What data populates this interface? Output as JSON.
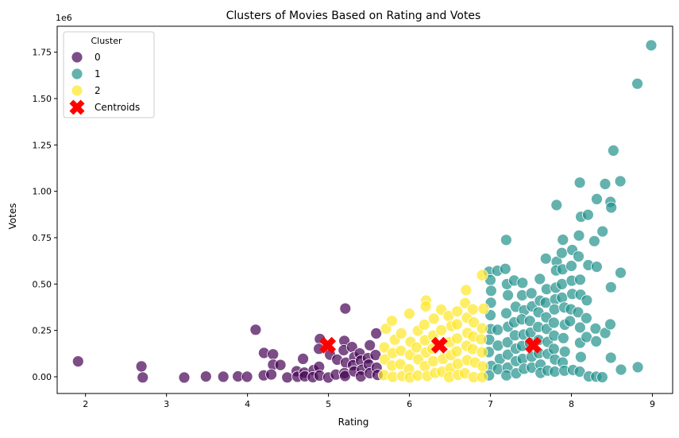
{
  "chart_data": {
    "type": "scatter",
    "title": "Clusters of Movies Based on Rating and Votes",
    "xlabel": "Rating",
    "ylabel": "Votes",
    "y_offset_label": "1e6",
    "xlim": [
      1.65,
      9.25
    ],
    "ylim": [
      -0.09,
      1.89
    ],
    "x_ticks": [
      2,
      3,
      4,
      5,
      6,
      7,
      8,
      9
    ],
    "y_ticks": [
      0.0,
      0.25,
      0.5,
      0.75,
      1.0,
      1.25,
      1.5,
      1.75
    ],
    "y_tick_labels": [
      "0.00",
      "0.25",
      "0.50",
      "0.75",
      "1.00",
      "1.25",
      "1.50",
      "1.75"
    ],
    "legend": {
      "title": "Cluster",
      "position": "upper-left",
      "entries": [
        "0",
        "1",
        "2",
        "Centroids"
      ]
    },
    "colors": {
      "cluster_0": "#440154",
      "cluster_1": "#21918c",
      "cluster_2": "#fde725",
      "centroids": "#ff0000"
    },
    "series": [
      {
        "name": "0",
        "points": [
          [
            1.9,
            0.08
          ],
          [
            2.7,
            0.06
          ],
          [
            2.7,
            0.0
          ],
          [
            3.2,
            0.0
          ],
          [
            3.5,
            0.0
          ],
          [
            3.7,
            0.0
          ],
          [
            3.9,
            0.0
          ],
          [
            4.0,
            0.0
          ],
          [
            4.1,
            0.25
          ],
          [
            4.2,
            0.13
          ],
          [
            4.2,
            0.01
          ],
          [
            4.3,
            0.12
          ],
          [
            4.3,
            0.07
          ],
          [
            4.3,
            0.01
          ],
          [
            4.4,
            0.06
          ],
          [
            4.5,
            0.0
          ],
          [
            4.6,
            0.03
          ],
          [
            4.6,
            0.0
          ],
          [
            4.7,
            0.1
          ],
          [
            4.7,
            0.02
          ],
          [
            4.7,
            0.0
          ],
          [
            4.8,
            0.04
          ],
          [
            4.8,
            0.0
          ],
          [
            4.9,
            0.2
          ],
          [
            4.9,
            0.15
          ],
          [
            4.9,
            0.05
          ],
          [
            4.9,
            0.01
          ],
          [
            5.0,
            0.12
          ],
          [
            5.0,
            0.0
          ],
          [
            5.1,
            0.09
          ],
          [
            5.1,
            0.01
          ],
          [
            5.2,
            0.37
          ],
          [
            5.2,
            0.19
          ],
          [
            5.2,
            0.14
          ],
          [
            5.2,
            0.08
          ],
          [
            5.2,
            0.02
          ],
          [
            5.2,
            0.0
          ],
          [
            5.3,
            0.16
          ],
          [
            5.3,
            0.11
          ],
          [
            5.3,
            0.06
          ],
          [
            5.3,
            0.03
          ],
          [
            5.4,
            0.13
          ],
          [
            5.4,
            0.09
          ],
          [
            5.4,
            0.04
          ],
          [
            5.4,
            0.0
          ],
          [
            5.5,
            0.17
          ],
          [
            5.5,
            0.1
          ],
          [
            5.5,
            0.07
          ],
          [
            5.5,
            0.02
          ],
          [
            5.6,
            0.23
          ],
          [
            5.6,
            0.12
          ],
          [
            5.6,
            0.05
          ],
          [
            5.6,
            0.01
          ]
        ]
      },
      {
        "name": "1",
        "points": [
          [
            7.0,
            0.57
          ],
          [
            7.0,
            0.52
          ],
          [
            7.0,
            0.46
          ],
          [
            7.0,
            0.4
          ],
          [
            7.0,
            0.33
          ],
          [
            7.0,
            0.26
          ],
          [
            7.0,
            0.2
          ],
          [
            7.0,
            0.13
          ],
          [
            7.0,
            0.06
          ],
          [
            7.0,
            0.01
          ],
          [
            7.1,
            0.57
          ],
          [
            7.1,
            0.25
          ],
          [
            7.1,
            0.17
          ],
          [
            7.1,
            0.1
          ],
          [
            7.1,
            0.04
          ],
          [
            7.2,
            0.74
          ],
          [
            7.2,
            0.58
          ],
          [
            7.2,
            0.5
          ],
          [
            7.2,
            0.44
          ],
          [
            7.2,
            0.34
          ],
          [
            7.2,
            0.27
          ],
          [
            7.2,
            0.19
          ],
          [
            7.2,
            0.12
          ],
          [
            7.2,
            0.05
          ],
          [
            7.2,
            0.01
          ],
          [
            7.3,
            0.52
          ],
          [
            7.3,
            0.38
          ],
          [
            7.3,
            0.29
          ],
          [
            7.3,
            0.22
          ],
          [
            7.3,
            0.15
          ],
          [
            7.3,
            0.08
          ],
          [
            7.3,
            0.02
          ],
          [
            7.4,
            0.51
          ],
          [
            7.4,
            0.44
          ],
          [
            7.4,
            0.36
          ],
          [
            7.4,
            0.31
          ],
          [
            7.4,
            0.23
          ],
          [
            7.4,
            0.17
          ],
          [
            7.4,
            0.1
          ],
          [
            7.4,
            0.04
          ],
          [
            7.5,
            0.45
          ],
          [
            7.5,
            0.38
          ],
          [
            7.5,
            0.3
          ],
          [
            7.5,
            0.24
          ],
          [
            7.5,
            0.18
          ],
          [
            7.5,
            0.11
          ],
          [
            7.5,
            0.05
          ],
          [
            7.6,
            0.53
          ],
          [
            7.6,
            0.41
          ],
          [
            7.6,
            0.35
          ],
          [
            7.6,
            0.27
          ],
          [
            7.6,
            0.2
          ],
          [
            7.6,
            0.13
          ],
          [
            7.6,
            0.07
          ],
          [
            7.6,
            0.02
          ],
          [
            7.7,
            0.64
          ],
          [
            7.7,
            0.47
          ],
          [
            7.7,
            0.4
          ],
          [
            7.7,
            0.32
          ],
          [
            7.7,
            0.26
          ],
          [
            7.7,
            0.19
          ],
          [
            7.7,
            0.12
          ],
          [
            7.7,
            0.03
          ],
          [
            7.8,
            0.93
          ],
          [
            7.8,
            0.62
          ],
          [
            7.8,
            0.57
          ],
          [
            7.8,
            0.48
          ],
          [
            7.8,
            0.42
          ],
          [
            7.8,
            0.36
          ],
          [
            7.8,
            0.29
          ],
          [
            7.8,
            0.22
          ],
          [
            7.8,
            0.15
          ],
          [
            7.8,
            0.09
          ],
          [
            7.8,
            0.03
          ],
          [
            7.9,
            0.74
          ],
          [
            7.9,
            0.67
          ],
          [
            7.9,
            0.58
          ],
          [
            7.9,
            0.5
          ],
          [
            7.9,
            0.43
          ],
          [
            7.9,
            0.37
          ],
          [
            7.9,
            0.28
          ],
          [
            7.9,
            0.21
          ],
          [
            7.9,
            0.14
          ],
          [
            7.9,
            0.08
          ],
          [
            7.9,
            0.03
          ],
          [
            8.0,
            0.68
          ],
          [
            8.0,
            0.6
          ],
          [
            8.0,
            0.52
          ],
          [
            8.0,
            0.45
          ],
          [
            8.0,
            0.36
          ],
          [
            8.0,
            0.3
          ],
          [
            8.0,
            0.04
          ],
          [
            8.1,
            1.05
          ],
          [
            8.1,
            0.86
          ],
          [
            8.1,
            0.76
          ],
          [
            8.1,
            0.65
          ],
          [
            8.1,
            0.52
          ],
          [
            8.1,
            0.44
          ],
          [
            8.1,
            0.35
          ],
          [
            8.1,
            0.27
          ],
          [
            8.1,
            0.18
          ],
          [
            8.1,
            0.11
          ],
          [
            8.1,
            0.03
          ],
          [
            8.2,
            0.87
          ],
          [
            8.2,
            0.6
          ],
          [
            8.2,
            0.41
          ],
          [
            8.2,
            0.32
          ],
          [
            8.2,
            0.21
          ],
          [
            8.2,
            0.0
          ],
          [
            8.3,
            0.96
          ],
          [
            8.3,
            0.73
          ],
          [
            8.3,
            0.59
          ],
          [
            8.3,
            0.26
          ],
          [
            8.3,
            0.19
          ],
          [
            8.3,
            0.0
          ],
          [
            8.4,
            1.04
          ],
          [
            8.4,
            0.78
          ],
          [
            8.4,
            0.24
          ],
          [
            8.4,
            0.0
          ],
          [
            8.5,
            1.22
          ],
          [
            8.5,
            0.94
          ],
          [
            8.5,
            0.91
          ],
          [
            8.5,
            0.48
          ],
          [
            8.5,
            0.28
          ],
          [
            8.5,
            0.1
          ],
          [
            8.6,
            1.05
          ],
          [
            8.6,
            0.56
          ],
          [
            8.6,
            0.04
          ],
          [
            8.8,
            1.58
          ],
          [
            8.8,
            0.05
          ],
          [
            9.0,
            1.79
          ]
        ]
      },
      {
        "name": "2",
        "points": [
          [
            5.7,
            0.26
          ],
          [
            5.7,
            0.16
          ],
          [
            5.7,
            0.09
          ],
          [
            5.7,
            0.01
          ],
          [
            5.8,
            0.3
          ],
          [
            5.8,
            0.2
          ],
          [
            5.8,
            0.13
          ],
          [
            5.8,
            0.06
          ],
          [
            5.8,
            0.0
          ],
          [
            5.9,
            0.23
          ],
          [
            5.9,
            0.14
          ],
          [
            5.9,
            0.07
          ],
          [
            5.9,
            0.0
          ],
          [
            6.0,
            0.34
          ],
          [
            6.0,
            0.19
          ],
          [
            6.0,
            0.12
          ],
          [
            6.0,
            0.04
          ],
          [
            6.0,
            0.0
          ],
          [
            6.1,
            0.25
          ],
          [
            6.1,
            0.16
          ],
          [
            6.1,
            0.09
          ],
          [
            6.1,
            0.01
          ],
          [
            6.2,
            0.41
          ],
          [
            6.2,
            0.38
          ],
          [
            6.2,
            0.28
          ],
          [
            6.2,
            0.2
          ],
          [
            6.2,
            0.13
          ],
          [
            6.2,
            0.06
          ],
          [
            6.2,
            0.0
          ],
          [
            6.3,
            0.31
          ],
          [
            6.3,
            0.22
          ],
          [
            6.3,
            0.15
          ],
          [
            6.3,
            0.08
          ],
          [
            6.3,
            0.02
          ],
          [
            6.4,
            0.36
          ],
          [
            6.4,
            0.25
          ],
          [
            6.4,
            0.1
          ],
          [
            6.4,
            0.03
          ],
          [
            6.5,
            0.33
          ],
          [
            6.5,
            0.27
          ],
          [
            6.5,
            0.19
          ],
          [
            6.5,
            0.12
          ],
          [
            6.5,
            0.05
          ],
          [
            6.5,
            0.0
          ],
          [
            6.6,
            0.35
          ],
          [
            6.6,
            0.28
          ],
          [
            6.6,
            0.21
          ],
          [
            6.6,
            0.14
          ],
          [
            6.6,
            0.07
          ],
          [
            6.6,
            0.01
          ],
          [
            6.7,
            0.47
          ],
          [
            6.7,
            0.4
          ],
          [
            6.7,
            0.32
          ],
          [
            6.7,
            0.24
          ],
          [
            6.7,
            0.17
          ],
          [
            6.7,
            0.09
          ],
          [
            6.7,
            0.02
          ],
          [
            6.8,
            0.36
          ],
          [
            6.8,
            0.29
          ],
          [
            6.8,
            0.22
          ],
          [
            6.8,
            0.15
          ],
          [
            6.8,
            0.08
          ],
          [
            6.8,
            0.0
          ],
          [
            6.9,
            0.55
          ],
          [
            6.9,
            0.37
          ],
          [
            6.9,
            0.26
          ],
          [
            6.9,
            0.2
          ],
          [
            6.9,
            0.13
          ],
          [
            6.9,
            0.06
          ],
          [
            6.9,
            0.0
          ]
        ]
      }
    ],
    "centroids": [
      [
        4.99,
        0.17
      ],
      [
        7.53,
        0.17
      ],
      [
        6.37,
        0.17
      ]
    ]
  }
}
